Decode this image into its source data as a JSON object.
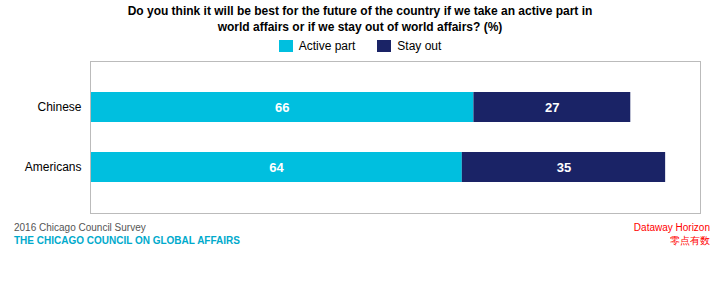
{
  "chart_data": {
    "type": "bar",
    "orientation": "horizontal",
    "stacked": true,
    "title": "Do you think it will be best for the future of the country if we take an active part in\nworld affairs or if we stay out of world affairs? (%)",
    "categories": [
      "Americans",
      "Chinese"
    ],
    "series": [
      {
        "name": "Active part",
        "color": "#00BFDF",
        "values": [
          64,
          66
        ]
      },
      {
        "name": "Stay out",
        "color": "#1A2366",
        "values": [
          35,
          27
        ]
      }
    ],
    "xlim": [
      0,
      105
    ],
    "tick_labels": "y",
    "data_labels": true,
    "legend": "top",
    "grid": false,
    "annotations": [
      {
        "text": "2016 Chicago Council Survey",
        "color": "#555555"
      },
      {
        "text": "THE CHICAGO COUNCIL ON GLOBAL AFFAIRS",
        "color": "#00AACC"
      },
      {
        "text": "Dataway Horizon",
        "color": "red"
      },
      {
        "text": "零点有数",
        "color": "red"
      }
    ]
  }
}
